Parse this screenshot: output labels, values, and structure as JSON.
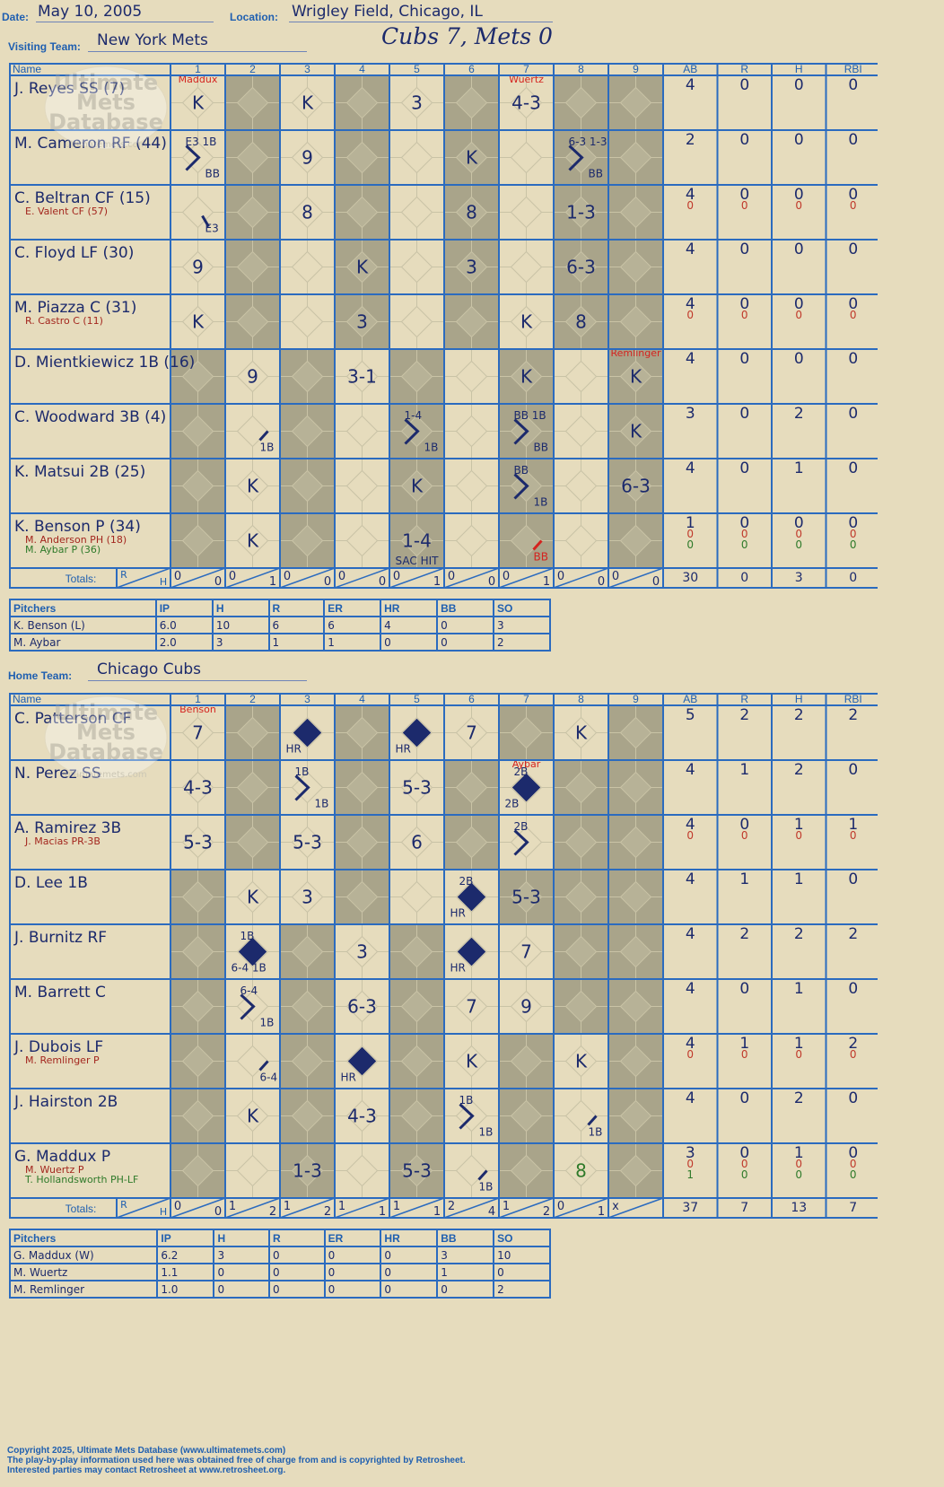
{
  "header": {
    "date_label": "Date:",
    "date": "May 10, 2005",
    "location_label": "Location:",
    "location": "Wrigley Field, Chicago, IL",
    "visiting_label": "Visiting Team:",
    "visiting_team": "New York Mets",
    "final_score": "Cubs 7, Mets 0",
    "home_label": "Home Team:",
    "home_team": "Chicago Cubs"
  },
  "columns": {
    "name": "Name",
    "innings": [
      "1",
      "2",
      "3",
      "4",
      "5",
      "6",
      "7",
      "8",
      "9"
    ],
    "stats": [
      "AB",
      "R",
      "H",
      "RBI"
    ],
    "totals_label": "Totals:",
    "rh": [
      "R",
      "H"
    ]
  },
  "watermark": {
    "line1": "Ultimate",
    "line2": "Mets",
    "line3": "Database",
    "line4": "ultimatemets.com"
  },
  "visitors": {
    "rows": [
      {
        "name": "J. Reyes SS (7)",
        "subs": [],
        "stats": [
          [
            "4"
          ],
          [
            "0"
          ],
          [
            "0"
          ],
          [
            "0"
          ]
        ],
        "cells": [
          {
            "c": 0,
            "t": "K",
            "tag": "Maddux"
          },
          {
            "c": 2,
            "t": "K"
          },
          {
            "c": 4,
            "t": "3"
          },
          {
            "c": 6,
            "t": "4-3",
            "tag": "Wuertz"
          }
        ]
      },
      {
        "name": "M. Cameron RF (44)",
        "subs": [],
        "stats": [
          [
            "2"
          ],
          [
            "0"
          ],
          [
            "0"
          ],
          [
            "0"
          ]
        ],
        "cells": [
          {
            "c": 0,
            "path": [
              1,
              2
            ],
            "tl": "E3 1B",
            "br": "BB"
          },
          {
            "c": 2,
            "t": "9"
          },
          {
            "c": 5,
            "t": "K"
          },
          {
            "c": 7,
            "path": [
              1,
              2
            ],
            "tl": "6-3 1-3",
            "br": "BB"
          }
        ]
      },
      {
        "name": "C. Beltran CF (15)",
        "subs": [
          {
            "t": "E. Valent CF (57)",
            "col": "#a3261e"
          }
        ],
        "stats": [
          [
            "4",
            "0"
          ],
          [
            "0",
            "0"
          ],
          [
            "0",
            "0"
          ],
          [
            "0",
            "0"
          ]
        ],
        "cells": [
          {
            "c": 0,
            "path": [
              1
            ],
            "br": "E3",
            "slash": true
          },
          {
            "c": 2,
            "t": "8"
          },
          {
            "c": 5,
            "t": "8"
          },
          {
            "c": 7,
            "t": "1-3"
          }
        ]
      },
      {
        "name": "C. Floyd LF (30)",
        "subs": [],
        "stats": [
          [
            "4"
          ],
          [
            "0"
          ],
          [
            "0"
          ],
          [
            "0"
          ]
        ],
        "cells": [
          {
            "c": 0,
            "t": "9"
          },
          {
            "c": 3,
            "t": "K"
          },
          {
            "c": 5,
            "t": "3"
          },
          {
            "c": 7,
            "t": "6-3"
          }
        ]
      },
      {
        "name": "M. Piazza C (31)",
        "subs": [
          {
            "t": "R. Castro C (11)",
            "col": "#a3261e"
          }
        ],
        "stats": [
          [
            "4",
            "0"
          ],
          [
            "0",
            "0"
          ],
          [
            "0",
            "0"
          ],
          [
            "0",
            "0"
          ]
        ],
        "cells": [
          {
            "c": 0,
            "t": "K"
          },
          {
            "c": 3,
            "t": "3"
          },
          {
            "c": 6,
            "t": "K"
          },
          {
            "c": 7,
            "t": "8"
          }
        ]
      },
      {
        "name": "D. Mientkiewicz 1B (16)",
        "subs": [],
        "stats": [
          [
            "4"
          ],
          [
            "0"
          ],
          [
            "0"
          ],
          [
            "0"
          ]
        ],
        "cells": [
          {
            "c": 1,
            "t": "9"
          },
          {
            "c": 3,
            "t": "3-1"
          },
          {
            "c": 6,
            "t": "K"
          },
          {
            "c": 8,
            "t": "K",
            "tag": "Remlinger"
          }
        ]
      },
      {
        "name": "C. Woodward 3B (4)",
        "subs": [],
        "stats": [
          [
            "3"
          ],
          [
            "0"
          ],
          [
            "2"
          ],
          [
            "0"
          ]
        ],
        "cells": [
          {
            "c": 1,
            "path": [
              1
            ],
            "br": "1B"
          },
          {
            "c": 4,
            "path": [
              1,
              2
            ],
            "tl": "1-4",
            "br": "1B"
          },
          {
            "c": 6,
            "path": [
              1,
              2
            ],
            "tl": "BB 1B",
            "br": "BB"
          },
          {
            "c": 8,
            "t": "K"
          }
        ]
      },
      {
        "name": "K. Matsui 2B (25)",
        "subs": [],
        "stats": [
          [
            "4"
          ],
          [
            "0"
          ],
          [
            "1"
          ],
          [
            "0"
          ]
        ],
        "cells": [
          {
            "c": 1,
            "t": "K"
          },
          {
            "c": 4,
            "t": "K"
          },
          {
            "c": 6,
            "path": [
              1,
              2
            ],
            "tl": "BB",
            "br": "1B"
          },
          {
            "c": 8,
            "t": "6-3"
          }
        ]
      },
      {
        "name": "K. Benson P (34)",
        "subs": [
          {
            "t": "M. Anderson PH (18)",
            "col": "#a3261e"
          },
          {
            "t": "M. Aybar P (36)",
            "col": "#2f7a2a"
          }
        ],
        "stats": [
          [
            "1",
            "0",
            "0"
          ],
          [
            "0",
            "0",
            "0"
          ],
          [
            "0",
            "0",
            "0"
          ],
          [
            "0",
            "0",
            "0"
          ]
        ],
        "cells": [
          {
            "c": 1,
            "t": "K"
          },
          {
            "c": 4,
            "t": "1-4",
            "bot": "SAC HIT"
          },
          {
            "c": 6,
            "path": [
              1
            ],
            "br": "BB",
            "red": true
          }
        ]
      }
    ],
    "totals": {
      "innings": [
        [
          "0",
          "0"
        ],
        [
          "0",
          "1"
        ],
        [
          "0",
          "0"
        ],
        [
          "0",
          "0"
        ],
        [
          "0",
          "1"
        ],
        [
          "0",
          "0"
        ],
        [
          "0",
          "1"
        ],
        [
          "0",
          "0"
        ],
        [
          "0",
          "0"
        ]
      ],
      "stats": [
        "30",
        "0",
        "3",
        "0"
      ]
    },
    "shade": [
      1,
      0,
      1,
      0,
      1,
      0,
      1,
      0,
      1
    ],
    "shade_rows": [
      [
        0,
        1,
        0,
        1,
        0,
        1,
        0,
        1,
        1
      ],
      [
        0,
        1,
        0,
        1,
        0,
        1,
        0,
        1,
        1
      ],
      [
        0,
        1,
        0,
        1,
        0,
        1,
        0,
        1,
        1
      ],
      [
        0,
        1,
        0,
        1,
        0,
        1,
        0,
        1,
        1
      ],
      [
        0,
        1,
        0,
        1,
        0,
        1,
        0,
        1,
        1
      ],
      [
        1,
        0,
        1,
        0,
        1,
        0,
        1,
        0,
        1
      ],
      [
        1,
        0,
        1,
        0,
        1,
        0,
        1,
        0,
        1
      ],
      [
        1,
        0,
        1,
        0,
        1,
        0,
        1,
        0,
        1
      ],
      [
        1,
        0,
        1,
        0,
        1,
        0,
        1,
        0,
        1
      ]
    ]
  },
  "home": {
    "rows": [
      {
        "name": "C. Patterson CF",
        "subs": [],
        "stats": [
          [
            "5"
          ],
          [
            "2"
          ],
          [
            "2"
          ],
          [
            "2"
          ]
        ],
        "cells": [
          {
            "c": 0,
            "t": "7",
            "tag": "Benson"
          },
          {
            "c": 2,
            "hr": true,
            "bl": "HR"
          },
          {
            "c": 4,
            "hr": true,
            "bl": "HR"
          },
          {
            "c": 5,
            "t": "7"
          },
          {
            "c": 7,
            "t": "K"
          }
        ]
      },
      {
        "name": "N. Perez SS",
        "subs": [],
        "stats": [
          [
            "4"
          ],
          [
            "1"
          ],
          [
            "2"
          ],
          [
            "0"
          ]
        ],
        "cells": [
          {
            "c": 0,
            "t": "4-3"
          },
          {
            "c": 2,
            "path": [
              1,
              2
            ],
            "tl": "1B",
            "br": "1B"
          },
          {
            "c": 4,
            "t": "5-3"
          },
          {
            "c": 6,
            "hr": true,
            "tl": "2B",
            "bl": "2B",
            "tag": "Aybar"
          }
        ]
      },
      {
        "name": "A. Ramirez 3B",
        "subs": [
          {
            "t": "J. Macias PR-3B",
            "col": "#a3261e"
          }
        ],
        "stats": [
          [
            "4",
            "0"
          ],
          [
            "0",
            "0"
          ],
          [
            "1",
            "0"
          ],
          [
            "1",
            "0"
          ]
        ],
        "cells": [
          {
            "c": 0,
            "t": "5-3"
          },
          {
            "c": 2,
            "t": "5-3"
          },
          {
            "c": 4,
            "t": "6"
          },
          {
            "c": 6,
            "path": [
              1,
              2
            ],
            "tl": "2B"
          }
        ]
      },
      {
        "name": "D. Lee 1B",
        "subs": [],
        "stats": [
          [
            "4"
          ],
          [
            "1"
          ],
          [
            "1"
          ],
          [
            "0"
          ]
        ],
        "cells": [
          {
            "c": 1,
            "t": "K"
          },
          {
            "c": 2,
            "t": "3"
          },
          {
            "c": 5,
            "hr": true,
            "tl": "2B",
            "bl": "HR"
          },
          {
            "c": 6,
            "t": "5-3"
          }
        ]
      },
      {
        "name": "J. Burnitz RF",
        "subs": [],
        "stats": [
          [
            "4"
          ],
          [
            "2"
          ],
          [
            "2"
          ],
          [
            "2"
          ]
        ],
        "cells": [
          {
            "c": 1,
            "hr": true,
            "tl": "1B",
            "bl": "6-4 1B"
          },
          {
            "c": 3,
            "t": "3"
          },
          {
            "c": 5,
            "hr": true,
            "bl": "HR"
          },
          {
            "c": 6,
            "t": "7"
          }
        ]
      },
      {
        "name": "M. Barrett C",
        "subs": [],
        "stats": [
          [
            "4"
          ],
          [
            "0"
          ],
          [
            "1"
          ],
          [
            "0"
          ]
        ],
        "cells": [
          {
            "c": 1,
            "path": [
              1,
              2
            ],
            "tl": "6-4",
            "br": "1B"
          },
          {
            "c": 3,
            "t": "6-3"
          },
          {
            "c": 5,
            "t": "7"
          },
          {
            "c": 6,
            "t": "9"
          }
        ]
      },
      {
        "name": "J. Dubois LF",
        "subs": [
          {
            "t": "M. Remlinger P",
            "col": "#a3261e"
          }
        ],
        "stats": [
          [
            "4",
            "0"
          ],
          [
            "1",
            "0"
          ],
          [
            "1",
            "0"
          ],
          [
            "2",
            "0"
          ]
        ],
        "cells": [
          {
            "c": 1,
            "path": [
              1
            ],
            "br": "6-4"
          },
          {
            "c": 3,
            "hr": true,
            "bl": "HR"
          },
          {
            "c": 5,
            "t": "K"
          },
          {
            "c": 7,
            "t": "K"
          }
        ]
      },
      {
        "name": "J. Hairston 2B",
        "subs": [],
        "stats": [
          [
            "4"
          ],
          [
            "0"
          ],
          [
            "2"
          ],
          [
            "0"
          ]
        ],
        "cells": [
          {
            "c": 1,
            "t": "K"
          },
          {
            "c": 3,
            "t": "4-3"
          },
          {
            "c": 5,
            "path": [
              1,
              2
            ],
            "tl": "1B",
            "br": "1B"
          },
          {
            "c": 7,
            "path": [
              1
            ],
            "br": "1B"
          }
        ]
      },
      {
        "name": "G. Maddux P",
        "subs": [
          {
            "t": "M. Wuertz P",
            "col": "#a3261e"
          },
          {
            "t": "T. Hollandsworth PH-LF",
            "col": "#2f7a2a"
          }
        ],
        "stats": [
          [
            "3",
            "0",
            "1"
          ],
          [
            "0",
            "0",
            "0"
          ],
          [
            "1",
            "0",
            "0"
          ],
          [
            "0",
            "0",
            "0"
          ]
        ],
        "cells": [
          {
            "c": 2,
            "t": "1-3"
          },
          {
            "c": 4,
            "t": "5-3"
          },
          {
            "c": 5,
            "path": [
              1
            ],
            "br": "1B"
          },
          {
            "c": 7,
            "t": "8",
            "green": true
          }
        ]
      }
    ],
    "totals": {
      "innings": [
        [
          "0",
          "0"
        ],
        [
          "1",
          "2"
        ],
        [
          "1",
          "2"
        ],
        [
          "1",
          "1"
        ],
        [
          "1",
          "1"
        ],
        [
          "2",
          "4"
        ],
        [
          "1",
          "2"
        ],
        [
          "0",
          "1"
        ],
        [
          "x",
          ""
        ]
      ],
      "stats": [
        "37",
        "7",
        "13",
        "7"
      ]
    },
    "shade_rows": [
      [
        0,
        1,
        0,
        1,
        0,
        0,
        1,
        0,
        1
      ],
      [
        0,
        1,
        0,
        1,
        0,
        1,
        0,
        1,
        1
      ],
      [
        0,
        1,
        0,
        1,
        0,
        1,
        0,
        1,
        1
      ],
      [
        1,
        0,
        0,
        1,
        0,
        0,
        1,
        1,
        1
      ],
      [
        1,
        0,
        1,
        0,
        1,
        0,
        0,
        1,
        1
      ],
      [
        1,
        0,
        1,
        0,
        1,
        0,
        0,
        1,
        1
      ],
      [
        1,
        0,
        1,
        0,
        1,
        0,
        1,
        0,
        1
      ],
      [
        1,
        0,
        1,
        0,
        1,
        0,
        1,
        0,
        1
      ],
      [
        1,
        0,
        1,
        0,
        1,
        0,
        1,
        0,
        1
      ]
    ]
  },
  "pitching_headers": [
    "Pitchers",
    "IP",
    "H",
    "R",
    "ER",
    "HR",
    "BB",
    "SO"
  ],
  "visitor_pitchers": [
    [
      "K. Benson (L)",
      "6.0",
      "10",
      "6",
      "6",
      "4",
      "0",
      "3"
    ],
    [
      "M. Aybar",
      "2.0",
      "3",
      "1",
      "1",
      "0",
      "0",
      "2"
    ]
  ],
  "home_pitchers": [
    [
      "G. Maddux (W)",
      "6.2",
      "3",
      "0",
      "0",
      "0",
      "3",
      "10"
    ],
    [
      "M. Wuertz",
      "1.1",
      "0",
      "0",
      "0",
      "0",
      "1",
      "0"
    ],
    [
      "M. Remlinger",
      "1.0",
      "0",
      "0",
      "0",
      "0",
      "0",
      "2"
    ]
  ],
  "footer": {
    "line1": "Copyright 2025, Ultimate Mets Database (www.ultimatemets.com)",
    "line2": "The play-by-play information used here was obtained free of charge from and is copyrighted by Retrosheet.",
    "line3": "Interested parties may contact Retrosheet at www.retrosheet.org."
  },
  "colors": {
    "grid": "#2b6bbf",
    "shade": "#a9a48a",
    "paper": "#e6dcbd",
    "ink": "#1c2a6c",
    "red": "#d4231f",
    "green": "#2f7a2a"
  }
}
